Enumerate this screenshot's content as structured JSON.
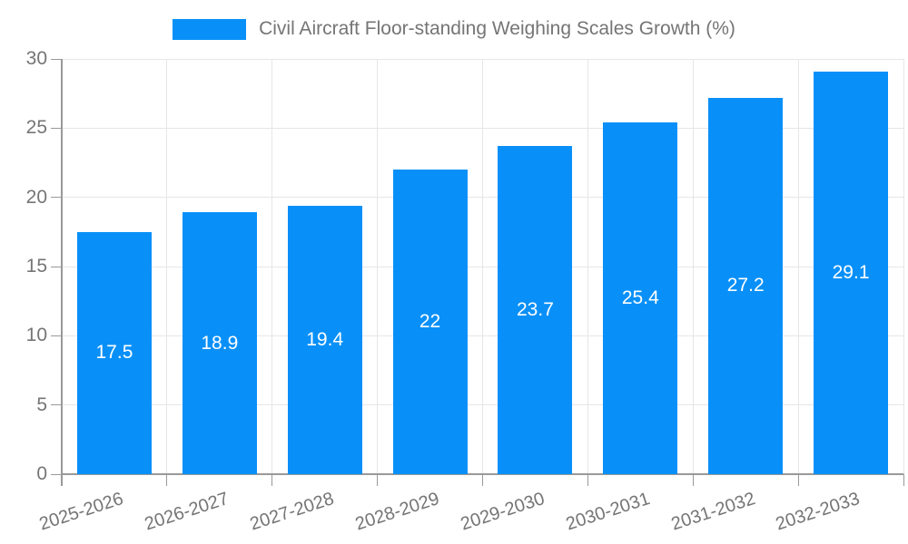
{
  "legend": {
    "label": "Civil Aircraft Floor-standing Weighing Scales Growth (%)"
  },
  "colors": {
    "bar": "#0990f8",
    "grid": "#e6e6e6",
    "axis": "#999999",
    "tick_text": "#757575",
    "value_text": "#ffffff"
  },
  "chart_data": {
    "type": "bar",
    "title": "Civil Aircraft Floor-standing Weighing Scales Growth (%)",
    "categories": [
      "2025-2026",
      "2026-2027",
      "2027-2028",
      "2028-2029",
      "2029-2030",
      "2030-2031",
      "2031-2032",
      "2032-2033"
    ],
    "values": [
      17.5,
      18.9,
      19.4,
      22,
      23.7,
      25.4,
      27.2,
      29.1
    ],
    "value_labels": [
      "17.5",
      "18.9",
      "19.4",
      "22",
      "23.7",
      "25.4",
      "27.2",
      "29.1"
    ],
    "xlabel": "",
    "ylabel": "",
    "ylim": [
      0,
      30
    ],
    "yticks": [
      0,
      5,
      10,
      15,
      20,
      25,
      30
    ],
    "grid": true,
    "legend_position": "top-center",
    "bar_color": "#0990f8"
  }
}
